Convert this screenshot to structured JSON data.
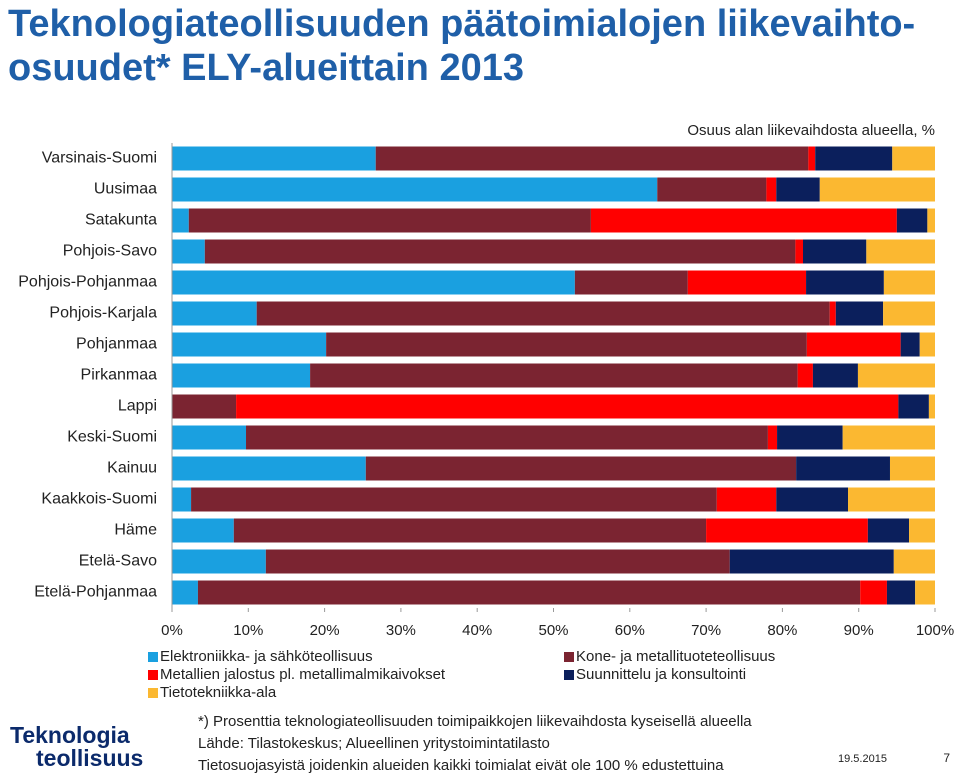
{
  "chart_data": {
    "type": "stacked-barh",
    "title": "Teknologiateollisuuden päätoimialojen liikevaihto-osuudet* ELY-alueittain 2013",
    "subtitle": "Osuus alan liikevaihdosta alueella, %",
    "categories": [
      "Varsinais-Suomi",
      "Uusimaa",
      "Satakunta",
      "Pohjois-Savo",
      "Pohjois-Pohjanmaa",
      "Pohjois-Karjala",
      "Pohjanmaa",
      "Pirkanmaa",
      "Lappi",
      "Keski-Suomi",
      "Kainuu",
      "Kaakkois-Suomi",
      "Häme",
      "Etelä-Savo",
      "Etelä-Pohjanmaa"
    ],
    "series": [
      {
        "name": "Elektroniikka- ja sähköteollisuus",
        "color": "#1aa0e0",
        "values": [
          26.7,
          63.6,
          2.2,
          4.3,
          52.8,
          11.1,
          20.2,
          18.1,
          0,
          9.7,
          25.4,
          2.5,
          8.1,
          12.3,
          3.4
        ]
      },
      {
        "name": "Kone- ja metallituoteteollisuus",
        "color": "#7b2431",
        "values": [
          56.7,
          14.3,
          52.7,
          77.4,
          14.8,
          75.1,
          63.0,
          63.9,
          8.4,
          68.4,
          56.4,
          68.9,
          61.9,
          60.8,
          86.8
        ]
      },
      {
        "name": "Metallien jalostus pl. metallimalmikaivokset",
        "color": "#ff0000",
        "values": [
          0.9,
          1.3,
          40.1,
          1.0,
          15.5,
          0.8,
          12.3,
          2.0,
          86.8,
          1.2,
          0,
          7.8,
          21.2,
          0,
          3.5
        ]
      },
      {
        "name": "Suunnittelu ja konsultointi",
        "color": "#0b1f5c",
        "values": [
          10.1,
          5.7,
          4.0,
          8.3,
          10.2,
          6.2,
          2.5,
          5.9,
          4.0,
          8.6,
          12.3,
          9.4,
          5.4,
          21.5,
          3.7
        ]
      },
      {
        "name": "Tietotekniikka-ala",
        "color": "#fbb831",
        "values": [
          5.6,
          15.1,
          1.0,
          9.0,
          6.7,
          6.8,
          2.0,
          10.1,
          0.8,
          12.1,
          5.9,
          11.4,
          3.4,
          5.4,
          2.6
        ]
      }
    ],
    "xlim": [
      0,
      100
    ],
    "xticks": [
      {
        "value": 0,
        "label": "0%"
      },
      {
        "value": 10,
        "label": "10%"
      },
      {
        "value": 20,
        "label": "20%"
      },
      {
        "value": 30,
        "label": "30%"
      },
      {
        "value": 40,
        "label": "40%"
      },
      {
        "value": 50,
        "label": "50%"
      },
      {
        "value": 60,
        "label": "60%"
      },
      {
        "value": 70,
        "label": "70%"
      },
      {
        "value": 80,
        "label": "80%"
      },
      {
        "value": 90,
        "label": "90%"
      },
      {
        "value": 100,
        "label": "100%"
      }
    ],
    "grid": false,
    "footnotes": [
      "*) Prosenttia teknologiateollisuuden toimipaikkojen liikevaihdosta kyseisellä alueella",
      "Lähde: Tilastokeskus; Alueellinen yritystoimintatilasto",
      "Tietosuojasyistä joidenkin alueiden kaikki toimialat eivät ole 100 % edustettuina"
    ],
    "logo": [
      "Teknologia",
      "teollisuus"
    ],
    "date": "19.5.2015",
    "page": "7"
  }
}
